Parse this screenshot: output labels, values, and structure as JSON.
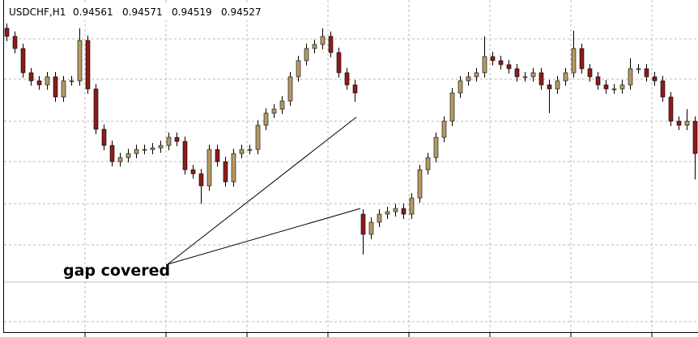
{
  "chart_data": {
    "type": "candlestick",
    "title": "USDCHF,H1",
    "header_values": [
      0.94561,
      0.94571,
      0.94519,
      0.94527
    ],
    "annotation": "gap covered",
    "up_color": "#b59a64",
    "down_color": "#8e1b1b",
    "ylim": [
      0.94303,
      0.9472
    ],
    "open": [
      0.94685,
      0.94675,
      0.9466,
      0.9463,
      0.9462,
      0.94615,
      0.94625,
      0.946,
      0.9462,
      0.9462,
      0.9467,
      0.9461,
      0.9456,
      0.9454,
      0.9452,
      0.94525,
      0.9453,
      0.94535,
      0.94535,
      0.94537,
      0.9454,
      0.9455,
      0.94545,
      0.9451,
      0.94505,
      0.9449,
      0.94535,
      0.9452,
      0.94495,
      0.9453,
      0.94535,
      0.94535,
      0.94565,
      0.9458,
      0.94585,
      0.94595,
      0.94625,
      0.94645,
      0.9466,
      0.94665,
      0.94675,
      0.94655,
      0.9463,
      0.94615,
      0.94455,
      0.9443,
      0.94445,
      0.94455,
      0.94458,
      0.94462,
      0.94455,
      0.94475,
      0.9451,
      0.94525,
      0.9455,
      0.9457,
      0.94605,
      0.9462,
      0.94625,
      0.9463,
      0.9465,
      0.94645,
      0.9464,
      0.94635,
      0.94625,
      0.94625,
      0.9463,
      0.94615,
      0.9461,
      0.9462,
      0.9463,
      0.9466,
      0.94635,
      0.94625,
      0.94615,
      0.9461,
      0.9461,
      0.94615,
      0.94635,
      0.94635,
      0.94625,
      0.9462,
      0.946,
      0.9457,
      0.94565,
      0.9457
    ],
    "high": [
      0.94691,
      0.94681,
      0.94666,
      0.94636,
      0.94626,
      0.94631,
      0.94631,
      0.94626,
      0.94626,
      0.94685,
      0.94676,
      0.94616,
      0.94566,
      0.94546,
      0.94531,
      0.94536,
      0.94541,
      0.94541,
      0.94543,
      0.94546,
      0.94556,
      0.94556,
      0.94551,
      0.94516,
      0.94511,
      0.94541,
      0.94541,
      0.94526,
      0.94536,
      0.94541,
      0.94541,
      0.94571,
      0.94586,
      0.94591,
      0.94601,
      0.94631,
      0.94651,
      0.94666,
      0.94671,
      0.94685,
      0.94681,
      0.94661,
      0.94636,
      0.94621,
      0.94461,
      0.94451,
      0.94461,
      0.94464,
      0.94468,
      0.94468,
      0.94481,
      0.94516,
      0.94531,
      0.94556,
      0.94576,
      0.94611,
      0.94626,
      0.94631,
      0.94636,
      0.94675,
      0.94656,
      0.94651,
      0.94646,
      0.94641,
      0.94631,
      0.94636,
      0.94636,
      0.94621,
      0.94626,
      0.94636,
      0.94682,
      0.94666,
      0.94641,
      0.94631,
      0.94621,
      0.94616,
      0.94621,
      0.94648,
      0.94641,
      0.94641,
      0.94631,
      0.94626,
      0.94606,
      0.94576,
      0.94585,
      0.94576
    ],
    "low": [
      0.94669,
      0.94654,
      0.94624,
      0.94614,
      0.94609,
      0.94609,
      0.94594,
      0.94594,
      0.94614,
      0.94614,
      0.94604,
      0.94554,
      0.94534,
      0.94514,
      0.94514,
      0.94519,
      0.94524,
      0.94529,
      0.94529,
      0.94531,
      0.94534,
      0.94539,
      0.94504,
      0.94499,
      0.94468,
      0.94484,
      0.94514,
      0.94489,
      0.94489,
      0.94524,
      0.94529,
      0.94529,
      0.94559,
      0.94574,
      0.94579,
      0.94589,
      0.94619,
      0.94639,
      0.94654,
      0.94659,
      0.94649,
      0.94624,
      0.94609,
      0.94594,
      0.94405,
      0.94424,
      0.94439,
      0.94449,
      0.94452,
      0.94449,
      0.94449,
      0.94469,
      0.94504,
      0.94519,
      0.94544,
      0.94564,
      0.94599,
      0.94614,
      0.94619,
      0.94624,
      0.94639,
      0.94634,
      0.94629,
      0.94619,
      0.94619,
      0.94619,
      0.94609,
      0.9458,
      0.94604,
      0.94614,
      0.94624,
      0.94629,
      0.94619,
      0.94609,
      0.94604,
      0.94604,
      0.94604,
      0.94609,
      0.94629,
      0.94619,
      0.94614,
      0.94594,
      0.94564,
      0.94559,
      0.94559,
      0.94498
    ],
    "close": [
      0.94675,
      0.9466,
      0.9463,
      0.9462,
      0.94615,
      0.94625,
      0.946,
      0.9462,
      0.9462,
      0.9467,
      0.9461,
      0.9456,
      0.9454,
      0.9452,
      0.94525,
      0.9453,
      0.94535,
      0.94535,
      0.94537,
      0.9454,
      0.9455,
      0.94545,
      0.9451,
      0.94505,
      0.9449,
      0.94535,
      0.9452,
      0.94495,
      0.9453,
      0.94535,
      0.94535,
      0.94565,
      0.9458,
      0.94585,
      0.94595,
      0.94625,
      0.94645,
      0.9466,
      0.94665,
      0.94675,
      0.94655,
      0.9463,
      0.94615,
      0.94605,
      0.9443,
      0.94445,
      0.94455,
      0.94458,
      0.94462,
      0.94455,
      0.94475,
      0.9451,
      0.94525,
      0.9455,
      0.9457,
      0.94605,
      0.9462,
      0.94625,
      0.9463,
      0.9465,
      0.94645,
      0.9464,
      0.94635,
      0.94625,
      0.94625,
      0.9463,
      0.94615,
      0.9461,
      0.9462,
      0.9463,
      0.9466,
      0.94635,
      0.94625,
      0.94615,
      0.9461,
      0.9461,
      0.94615,
      0.94635,
      0.94635,
      0.94625,
      0.9462,
      0.946,
      0.9457,
      0.94565,
      0.9457,
      0.9453
    ]
  }
}
